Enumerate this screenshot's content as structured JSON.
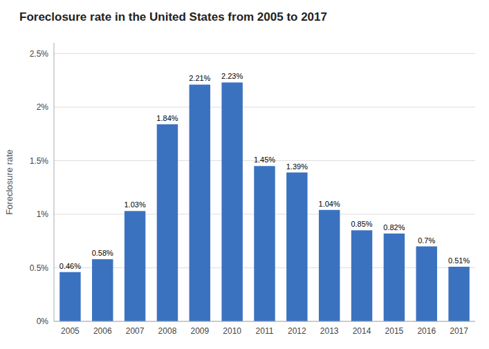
{
  "chart_data": {
    "type": "bar",
    "title": "Foreclosure rate in the United States from 2005 to 2017",
    "ylabel": "Foreclosure rate",
    "categories": [
      "2005",
      "2006",
      "2007",
      "2008",
      "2009",
      "2010",
      "2011",
      "2012",
      "2013",
      "2014",
      "2015",
      "2016",
      "2017"
    ],
    "values": [
      0.0046,
      0.0058,
      0.0103,
      0.0184,
      0.0221,
      0.0223,
      0.0145,
      0.0139,
      0.0104,
      0.0085,
      0.0082,
      0.007,
      0.0051
    ],
    "value_labels": [
      "0.46%",
      "0.58%",
      "1.03%",
      "1.84%",
      "2.21%",
      "2.23%",
      "1.45%",
      "1.39%",
      "1.04%",
      "0.85%",
      "0.82%",
      "0.7%",
      "0.51%"
    ],
    "color": "#3b72c0",
    "ylim": [
      0,
      0.026
    ],
    "yticks": [
      {
        "value": 0,
        "label": "0%"
      },
      {
        "value": 0.005,
        "label": "0.5%"
      },
      {
        "value": 0.01,
        "label": "1%"
      },
      {
        "value": 0.015,
        "label": "1.5%"
      },
      {
        "value": 0.02,
        "label": "2%"
      },
      {
        "value": 0.025,
        "label": "2.5%"
      }
    ],
    "grid": true,
    "data_labels": true
  }
}
